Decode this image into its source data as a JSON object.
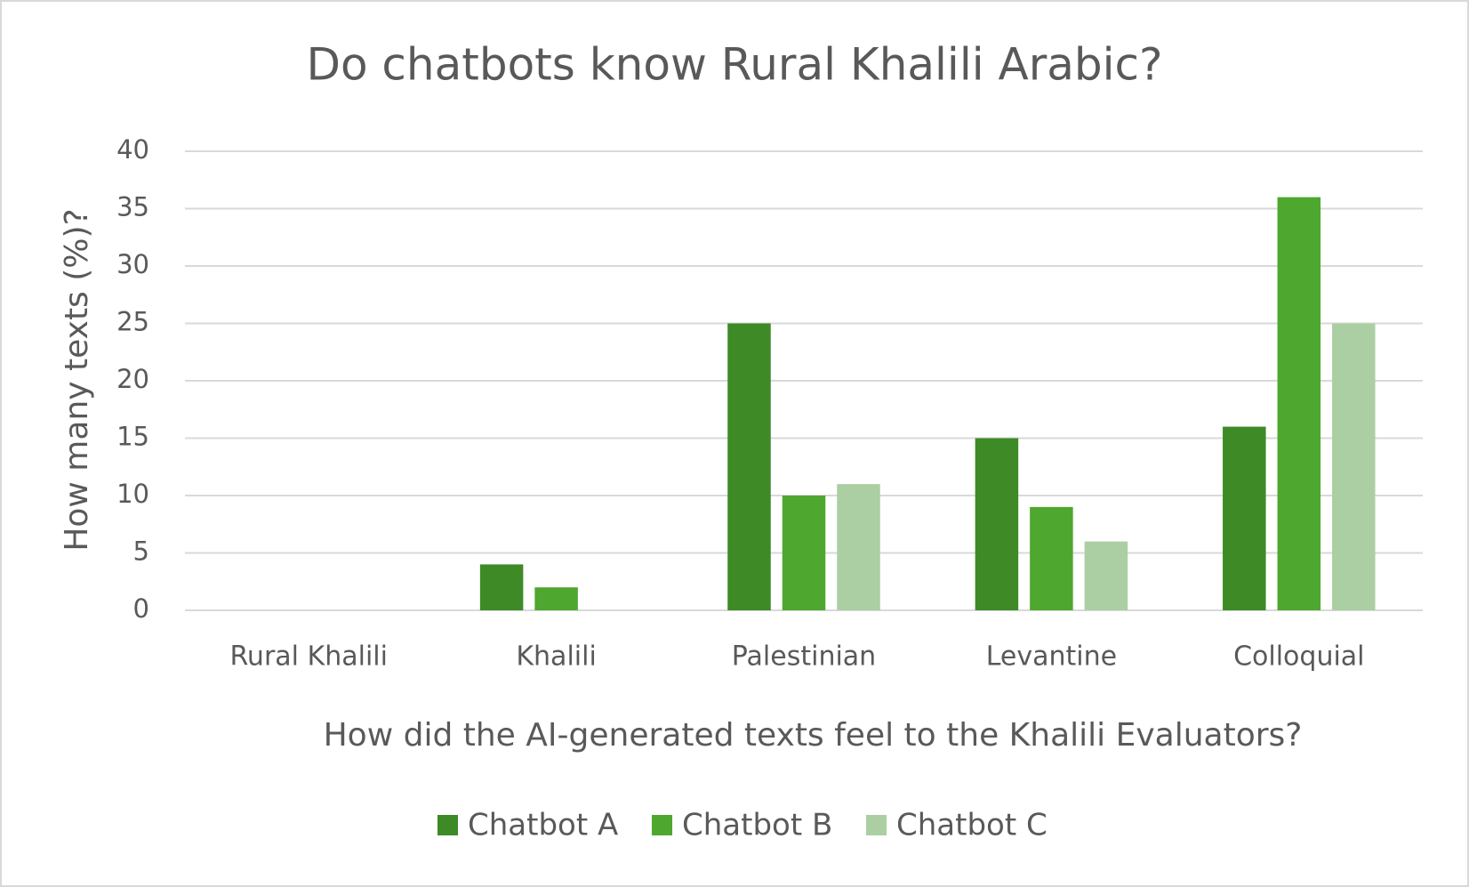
{
  "chart_data": {
    "type": "bar",
    "title": "Do chatbots know Rural Khalili Arabic?",
    "x_label": "How did the AI-generated texts feel to the Khalili Evaluators?",
    "y_label": "How many texts (%)?",
    "categories": [
      "Rural Khalili",
      "Khalili",
      "Palestinian",
      "Levantine",
      "Colloquial"
    ],
    "series": [
      {
        "name": "Chatbot A",
        "color": "#3d8a26",
        "values": [
          0,
          4,
          25,
          15,
          16
        ]
      },
      {
        "name": "Chatbot B",
        "color": "#4ea72e",
        "values": [
          0,
          2,
          10,
          9,
          36
        ]
      },
      {
        "name": "Chatbot C",
        "color": "#abcfa3",
        "values": [
          0,
          0,
          11,
          6,
          25
        ]
      }
    ],
    "ylim": [
      0,
      40
    ],
    "yticks": [
      0,
      5,
      10,
      15,
      20,
      25,
      30,
      35,
      40
    ],
    "grid": true,
    "legend": "bottom"
  }
}
